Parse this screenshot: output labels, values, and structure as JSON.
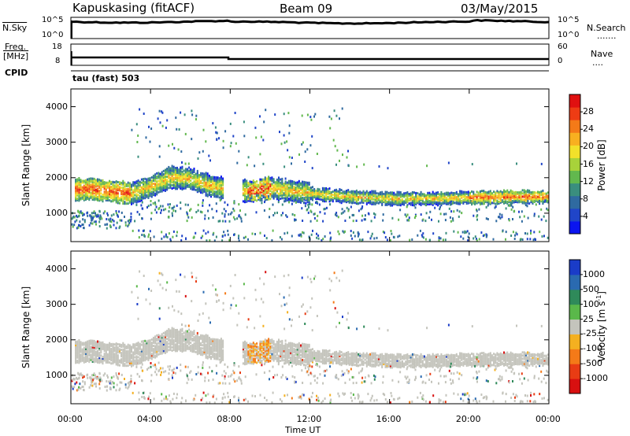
{
  "header": {
    "station": "Kapuskasing (fitACF)",
    "beam": "Beam 09",
    "date": "03/May/2015"
  },
  "strips": {
    "nsky_label": "N.Sky",
    "nsky_ticks": [
      "10^5",
      "10^0"
    ],
    "nsearch_label": "N.Search",
    "nsearch_ticks": [
      "10^5",
      "10^0"
    ],
    "freq_label": "Freq.",
    "freq_unit": "[MHz]",
    "freq_ticks": [
      "18",
      "8"
    ],
    "nave_label": "Nave",
    "nave_ticks": [
      "60",
      "0"
    ],
    "cpid_label": "CPID",
    "cpid_value": "tau (fast) 503"
  },
  "chart_data": [
    {
      "type": "heatmap",
      "panel": "power",
      "ylabel": "Slant Range [km]",
      "xlabel": "",
      "ylim": [
        200,
        4500
      ],
      "yticks": [
        "1000",
        "2000",
        "3000",
        "4000"
      ],
      "xlim_hours": [
        0,
        24
      ],
      "colorbar": {
        "label": "Power [dB]",
        "ticks": [
          "4",
          "8",
          "12",
          "16",
          "20",
          "24",
          "28"
        ],
        "colors": [
          "#0a14f0",
          "#2045c8",
          "#2f6aa0",
          "#3a8e7e",
          "#62b84e",
          "#a8d23a",
          "#f2e12a",
          "#f8b020",
          "#f47a18",
          "#ee3c14",
          "#e01010"
        ]
      },
      "bands": [
        {
          "name": "main",
          "points": [
            [
              0.2,
              1700
            ],
            [
              1,
              1720
            ],
            [
              2,
              1650
            ],
            [
              3,
              1600
            ],
            [
              4,
              1800
            ],
            [
              5,
              2050
            ],
            [
              6,
              2000
            ],
            [
              7,
              1800
            ],
            [
              8,
              1700
            ],
            [
              9,
              1650
            ],
            [
              10,
              1750
            ],
            [
              12,
              1600
            ],
            [
              14,
              1500
            ],
            [
              16,
              1450
            ],
            [
              18,
              1450
            ],
            [
              20,
              1480
            ],
            [
              22,
              1500
            ],
            [
              24,
              1500
            ]
          ]
        }
      ]
    },
    {
      "type": "heatmap",
      "panel": "velocity",
      "ylabel": "Slant Range [km]",
      "xlabel": "Time UT",
      "ylim": [
        200,
        4500
      ],
      "yticks": [
        "1000",
        "2000",
        "3000",
        "4000"
      ],
      "xticks": [
        "00:00",
        "04:00",
        "08:00",
        "12:00",
        "16:00",
        "20:00",
        "00:00"
      ],
      "xlim_hours": [
        0,
        24
      ],
      "colorbar": {
        "label": "Velocity [m s",
        "label_sup": "-1",
        "label_close": "]",
        "ticks": [
          "1000",
          "500",
          "100",
          "25",
          "-25",
          "-100",
          "-500",
          "-1000"
        ],
        "colors": [
          "#1a3cc8",
          "#2a6ab0",
          "#2f8a5a",
          "#5ab84a",
          "#c4c4bc",
          "#f4b020",
          "#f47a18",
          "#e83c14",
          "#d81010"
        ]
      }
    }
  ]
}
